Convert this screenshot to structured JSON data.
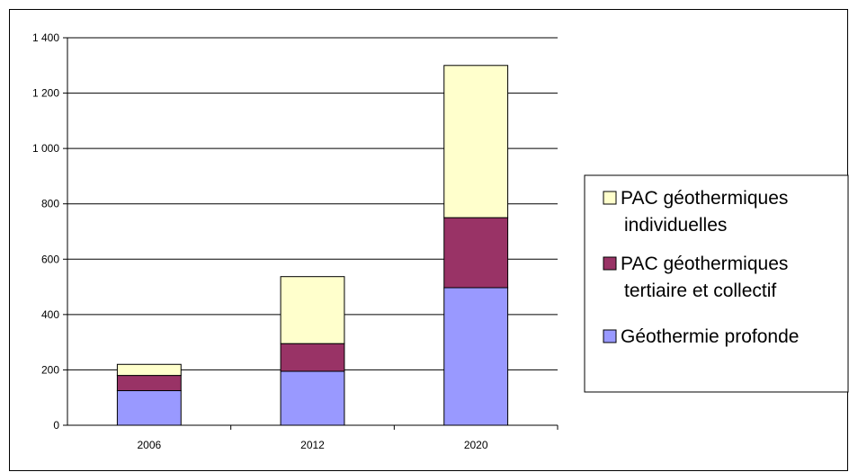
{
  "chart_data": {
    "type": "bar",
    "stacked": true,
    "categories": [
      "2006",
      "2012",
      "2020"
    ],
    "series": [
      {
        "name": "Géothermie profonde",
        "values": [
          125,
          195,
          497
        ],
        "color": "#9999FF"
      },
      {
        "name": "PAC géothermiques tertiaire et collectif",
        "values": [
          55,
          100,
          253
        ],
        "color": "#993366"
      },
      {
        "name": "PAC géothermiques individuelles",
        "values": [
          40,
          242,
          550
        ],
        "color": "#FFFFCC"
      }
    ],
    "y_ticks": [
      "0",
      "200",
      "400",
      "600",
      "800",
      "1 000",
      "1 200",
      "1 400"
    ],
    "ylim": [
      0,
      1400
    ],
    "grid": true,
    "legend_position": "right",
    "legend": [
      {
        "lines": [
          "PAC géothermiques",
          "individuelles"
        ],
        "color": "#FFFFCC"
      },
      {
        "lines": [
          "PAC géothermiques",
          "tertiaire et collectif"
        ],
        "color": "#993366"
      },
      {
        "lines": [
          "Géothermie profonde"
        ],
        "color": "#9999FF"
      }
    ]
  }
}
